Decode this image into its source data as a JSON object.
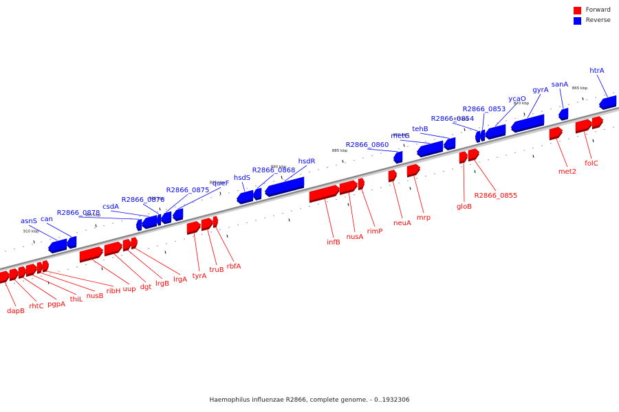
{
  "legend": [
    {
      "label": "Forward",
      "color": "#ff0000"
    },
    {
      "label": "Reverse",
      "color": "#0000ff"
    }
  ],
  "footer": "Haemophilus influenzae R2866, complete genome. - 0..1932306",
  "colors": {
    "forward": "#ff0000",
    "reverse": "#0000ff",
    "backbone": "#888888"
  },
  "ticks": [
    "910 kbp",
    "905 kbp",
    "900 kbp",
    "895 kbp",
    "890 kbp",
    "885 kbp",
    "880 kbp",
    "875 kbp",
    "870 kbp",
    "865 kbp"
  ],
  "reverse_genes": [
    "asnS",
    "can",
    "R2866_0878",
    "csdA",
    "R2866_0876",
    "R2866_0875",
    "queF",
    "hsdS",
    "R2866_0868",
    "hsdR",
    "R2866_0860",
    "metG",
    "tehB",
    "R2866_0854",
    "R2866_0853",
    "ycaO",
    "gyrA",
    "sanA",
    "htrA"
  ],
  "forward_genes": [
    "dapB",
    "rhtC",
    "pgpA",
    "thiL",
    "nusB",
    "ribH",
    "uup",
    "dgt",
    "lrgB",
    "lrgA",
    "tyrA",
    "truB",
    "rbfA",
    "infB",
    "nusA",
    "rimP",
    "neuA",
    "mrp",
    "gloB",
    "R2866_0855",
    "met2",
    "folC"
  ]
}
